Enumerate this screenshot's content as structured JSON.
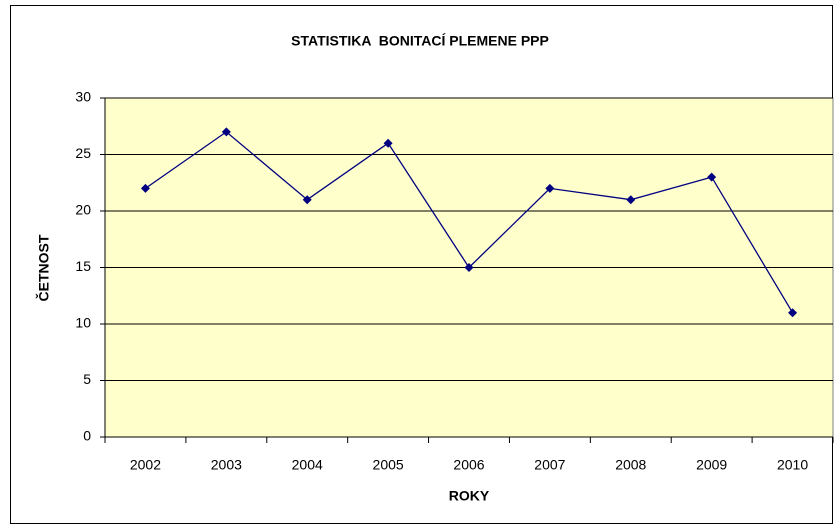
{
  "chart_data": {
    "type": "line",
    "title": "STATISTIKA  BONITACÍ PLEMENE PPP",
    "x_label": "ROKY",
    "y_label": "ČETNOST",
    "categories": [
      "2002",
      "2003",
      "2004",
      "2005",
      "2006",
      "2007",
      "2008",
      "2009",
      "2010"
    ],
    "series": [
      {
        "name": "ČETNOST",
        "color": "#000080",
        "values": [
          22,
          27,
          21,
          26,
          15,
          22,
          21,
          23,
          11
        ]
      }
    ],
    "ylim": [
      0,
      30
    ],
    "yticks": [
      0,
      5,
      10,
      15,
      20,
      25,
      30
    ],
    "grid": true,
    "legend": false
  }
}
